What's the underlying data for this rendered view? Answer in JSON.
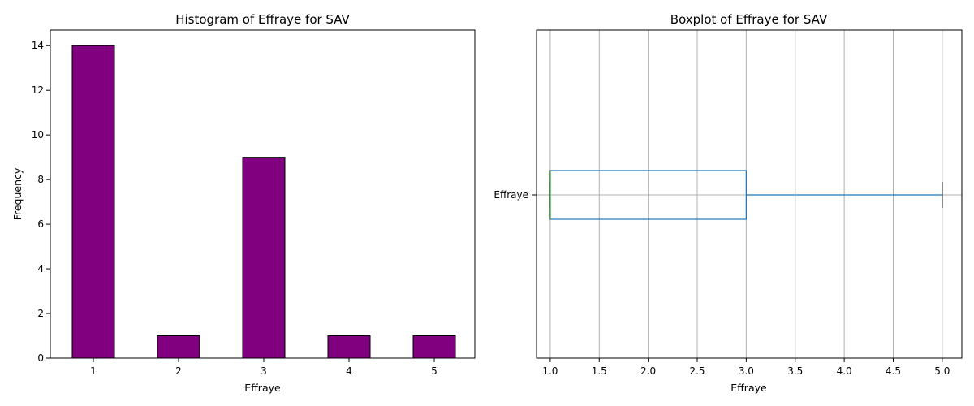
{
  "colors": {
    "bar_fill": "#800080",
    "bar_edge": "#000000",
    "box": "#1f77b4",
    "median": "#2ca02c",
    "grid": "#b0b0b0"
  },
  "chart_data": [
    {
      "type": "bar",
      "title": "Histogram of Effraye for SAV",
      "xlabel": "Effraye",
      "ylabel": "Frequency",
      "categories": [
        "1",
        "2",
        "3",
        "4",
        "5"
      ],
      "values": [
        14,
        1,
        9,
        1,
        1
      ],
      "ylim": [
        0,
        14.7
      ],
      "yticks": [
        0,
        2,
        4,
        6,
        8,
        10,
        12,
        14
      ],
      "grid": false
    },
    {
      "type": "boxplot",
      "title": "Boxplot of Effraye for SAV",
      "xlabel": "Effraye",
      "category": "Effraye",
      "orientation": "horizontal",
      "min": 1.0,
      "q1": 1.0,
      "median": 1.0,
      "q3": 3.0,
      "max": 5.0,
      "xlim": [
        0.86,
        5.2
      ],
      "xticks": [
        "1.0",
        "1.5",
        "2.0",
        "2.5",
        "3.0",
        "3.5",
        "4.0",
        "4.5",
        "5.0"
      ],
      "grid": true
    }
  ]
}
